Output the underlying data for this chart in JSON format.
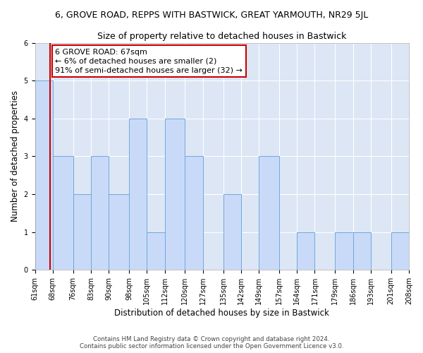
{
  "title": "6, GROVE ROAD, REPPS WITH BASTWICK, GREAT YARMOUTH, NR29 5JL",
  "subtitle": "Size of property relative to detached houses in Bastwick",
  "xlabel": "Distribution of detached houses by size in Bastwick",
  "ylabel": "Number of detached properties",
  "bin_edges": [
    61,
    68,
    76,
    83,
    90,
    98,
    105,
    112,
    120,
    127,
    135,
    142,
    149,
    157,
    164,
    171,
    179,
    186,
    193,
    201,
    208
  ],
  "bar_heights": [
    5,
    3,
    2,
    3,
    2,
    4,
    1,
    4,
    3,
    0,
    2,
    0,
    3,
    0,
    1,
    0,
    1,
    1,
    0,
    1
  ],
  "bar_color": "#c9daf8",
  "bar_edge_color": "#6fa8dc",
  "property_line_x": 67,
  "property_line_color": "#cc0000",
  "annotation_box_text": "6 GROVE ROAD: 67sqm\n← 6% of detached houses are smaller (2)\n91% of semi-detached houses are larger (32) →",
  "annotation_box_color": "#cc0000",
  "ylim": [
    0,
    6
  ],
  "yticks": [
    0,
    1,
    2,
    3,
    4,
    5,
    6
  ],
  "background_color": "#dce6f5",
  "footer_line1": "Contains HM Land Registry data © Crown copyright and database right 2024.",
  "footer_line2": "Contains public sector information licensed under the Open Government Licence v3.0.",
  "title_fontsize": 9,
  "subtitle_fontsize": 9,
  "tick_label_fontsize": 7,
  "axis_label_fontsize": 8.5,
  "annotation_fontsize": 8
}
